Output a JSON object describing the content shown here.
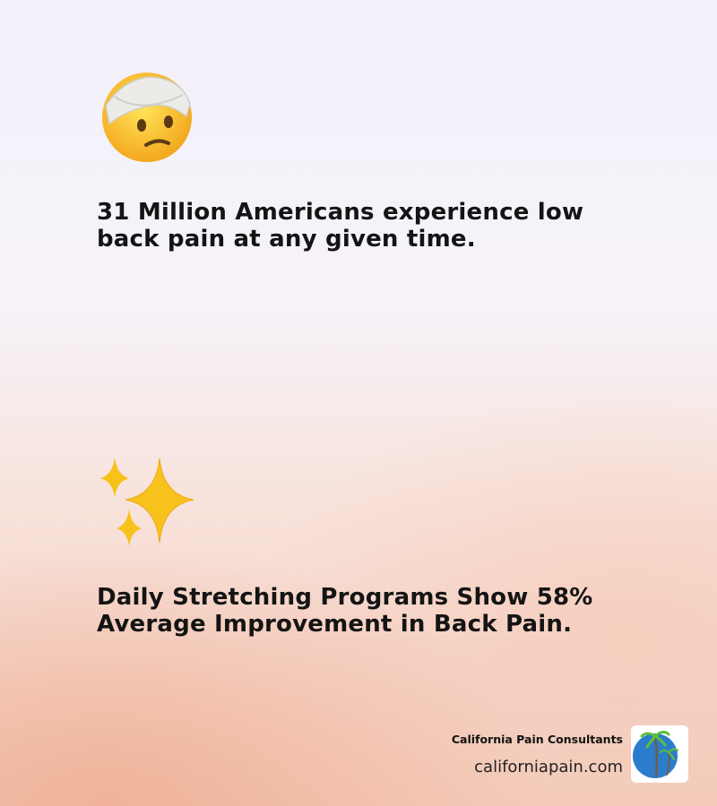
{
  "stats": [
    {
      "text": "31 Million Americans experience low back pain at any given time."
    },
    {
      "text": "Daily Stretching Programs Show 58% Average Improvement in Back Pain."
    }
  ],
  "footer": {
    "brand": "California Pain Consultants",
    "url": "californiapain.com"
  }
}
